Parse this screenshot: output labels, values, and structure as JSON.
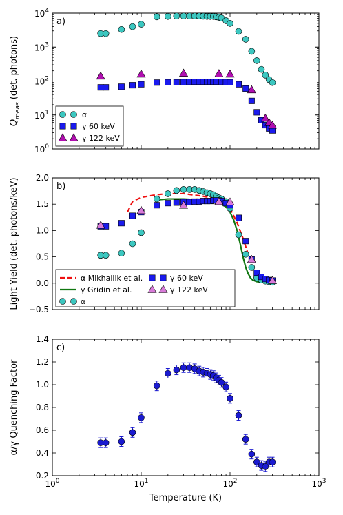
{
  "chart_data": [
    {
      "panel_label": "a)",
      "type": "scatter",
      "ylabel": "Q_meas (det. photons)",
      "ylabel_main": "Q",
      "ylabel_sub": "meas",
      "ylabel_rest": " (det. photons)",
      "xscale": "log",
      "yscale": "log",
      "xlim": [
        1,
        1000
      ],
      "ylim": [
        1,
        10000
      ],
      "yticks": [
        "10^0",
        "10^1",
        "10^2",
        "10^3",
        "10^4"
      ],
      "legend": {
        "loc": "lower-left",
        "entries": [
          "α",
          "γ 60 keV",
          "γ 122 keV"
        ]
      },
      "series": [
        {
          "name": "α",
          "marker": "circle",
          "color": "#3cc7c0",
          "x": [
            3.5,
            4,
            6,
            8,
            10,
            15,
            20,
            25,
            30,
            35,
            40,
            45,
            50,
            55,
            60,
            65,
            70,
            75,
            80,
            90,
            100,
            125,
            150,
            175,
            200,
            225,
            250,
            275,
            300
          ],
          "y": [
            2500,
            2500,
            3300,
            4000,
            4700,
            7800,
            8000,
            8200,
            8200,
            8200,
            8200,
            8200,
            8100,
            8000,
            8000,
            8000,
            7800,
            7500,
            7200,
            6000,
            5000,
            2900,
            1700,
            750,
            400,
            220,
            150,
            110,
            90
          ]
        },
        {
          "name": "γ 60 keV",
          "marker": "square",
          "color": "#1a1aee",
          "x": [
            3.5,
            4,
            6,
            8,
            10,
            15,
            20,
            25,
            30,
            35,
            40,
            45,
            50,
            55,
            60,
            65,
            70,
            75,
            80,
            90,
            100,
            125,
            150,
            175,
            200,
            225,
            250,
            275,
            300
          ],
          "y": [
            65,
            65,
            68,
            75,
            80,
            90,
            92,
            92,
            93,
            94,
            95,
            95,
            95,
            95,
            95,
            95,
            95,
            95,
            94,
            93,
            92,
            80,
            60,
            26,
            12,
            7,
            5,
            4,
            3.5
          ]
        },
        {
          "name": "γ 122 keV",
          "marker": "triangle",
          "color": "#b00fb0",
          "x": [
            3.5,
            10,
            30,
            75,
            100,
            175,
            250,
            275,
            300
          ],
          "y": [
            140,
            160,
            170,
            165,
            160,
            55,
            8,
            6,
            5
          ]
        }
      ]
    },
    {
      "panel_label": "b)",
      "type": "scatter",
      "ylabel": "Light Yield (det. photons/keV)",
      "xscale": "log",
      "xlim": [
        1,
        1000
      ],
      "ylim": [
        -0.5,
        2.0
      ],
      "yticks": [
        "−0.5",
        "0.0",
        "0.5",
        "1.0",
        "1.5",
        "2.0"
      ],
      "legend": {
        "loc": "lower-left",
        "entries": [
          "α Mikhailik et al.",
          "γ Gridin et al.",
          "α",
          "γ 60 keV",
          "γ 122 keV"
        ]
      },
      "series": [
        {
          "name": "α Mikhailik et al.",
          "kind": "line",
          "dash": "dashed",
          "color": "#ee1111",
          "x": [
            7,
            8,
            10,
            15,
            20,
            30,
            50,
            70,
            100,
            120,
            140,
            160,
            180,
            200,
            250,
            300
          ],
          "y": [
            1.35,
            1.55,
            1.63,
            1.68,
            1.7,
            1.7,
            1.65,
            1.6,
            1.42,
            1.15,
            0.85,
            0.55,
            0.3,
            0.15,
            0.05,
            0.02
          ]
        },
        {
          "name": "γ Gridin et al.",
          "kind": "line",
          "color": "#117711",
          "x": [
            15,
            20,
            30,
            50,
            70,
            90,
            100,
            110,
            120,
            130,
            140,
            150,
            160,
            170,
            180,
            200,
            250,
            300
          ],
          "y": [
            1.58,
            1.6,
            1.6,
            1.58,
            1.55,
            1.45,
            1.35,
            1.2,
            1.0,
            0.75,
            0.5,
            0.3,
            0.18,
            0.1,
            0.06,
            0.03,
            0.01,
            0.0
          ]
        },
        {
          "name": "α",
          "marker": "circle",
          "color": "#3cc7c0",
          "x": [
            3.5,
            4,
            6,
            8,
            10,
            15,
            20,
            25,
            30,
            35,
            40,
            45,
            50,
            55,
            60,
            65,
            70,
            75,
            80,
            90,
            100,
            125,
            150,
            175,
            200,
            225,
            250,
            275,
            300
          ],
          "y": [
            0.53,
            0.53,
            0.57,
            0.75,
            0.96,
            1.6,
            1.7,
            1.76,
            1.78,
            1.78,
            1.78,
            1.76,
            1.74,
            1.72,
            1.7,
            1.68,
            1.65,
            1.62,
            1.6,
            1.55,
            1.42,
            0.92,
            0.55,
            0.3,
            0.1,
            0.06,
            0.04,
            0.03,
            0.02
          ]
        },
        {
          "name": "γ 60 keV",
          "marker": "square",
          "color": "#1a1aee",
          "x": [
            3.5,
            4,
            6,
            8,
            10,
            15,
            20,
            25,
            30,
            35,
            40,
            45,
            50,
            55,
            60,
            65,
            70,
            75,
            80,
            90,
            100,
            125,
            150,
            175,
            200,
            225,
            250,
            275,
            300
          ],
          "y": [
            1.08,
            1.08,
            1.14,
            1.28,
            1.35,
            1.48,
            1.52,
            1.53,
            1.54,
            1.54,
            1.55,
            1.55,
            1.56,
            1.56,
            1.56,
            1.57,
            1.57,
            1.57,
            1.56,
            1.52,
            1.48,
            1.24,
            0.8,
            0.45,
            0.2,
            0.12,
            0.08,
            0.06,
            0.05
          ]
        },
        {
          "name": "γ 122 keV",
          "marker": "triangle",
          "color": "#d97ad9",
          "x": [
            3.5,
            10,
            30,
            75,
            100,
            175,
            300
          ],
          "y": [
            1.1,
            1.38,
            1.48,
            1.55,
            1.54,
            0.45,
            0.05
          ]
        }
      ]
    },
    {
      "panel_label": "c)",
      "type": "scatter",
      "ylabel": "α/γ Quenching Factor",
      "xlabel": "Temperature (K)",
      "xscale": "log",
      "xlim": [
        1,
        1000
      ],
      "ylim": [
        0.2,
        1.4
      ],
      "xticks": [
        "10^0",
        "10^1",
        "10^2",
        "10^3"
      ],
      "yticks": [
        "0.2",
        "0.4",
        "0.6",
        "0.8",
        "1.0",
        "1.2",
        "1.4"
      ],
      "series": [
        {
          "name": "α/γ",
          "marker": "circle",
          "color": "#1a1ad0",
          "x": [
            3.5,
            4,
            6,
            8,
            10,
            15,
            20,
            25,
            30,
            35,
            40,
            45,
            50,
            55,
            60,
            65,
            70,
            75,
            80,
            90,
            100,
            125,
            150,
            175,
            200,
            225,
            250,
            275,
            300
          ],
          "y": [
            0.49,
            0.49,
            0.5,
            0.58,
            0.71,
            0.99,
            1.1,
            1.13,
            1.15,
            1.15,
            1.14,
            1.12,
            1.11,
            1.1,
            1.09,
            1.08,
            1.06,
            1.04,
            1.02,
            0.98,
            0.88,
            0.73,
            0.52,
            0.39,
            0.32,
            0.29,
            0.28,
            0.32,
            0.32
          ]
        }
      ]
    }
  ]
}
